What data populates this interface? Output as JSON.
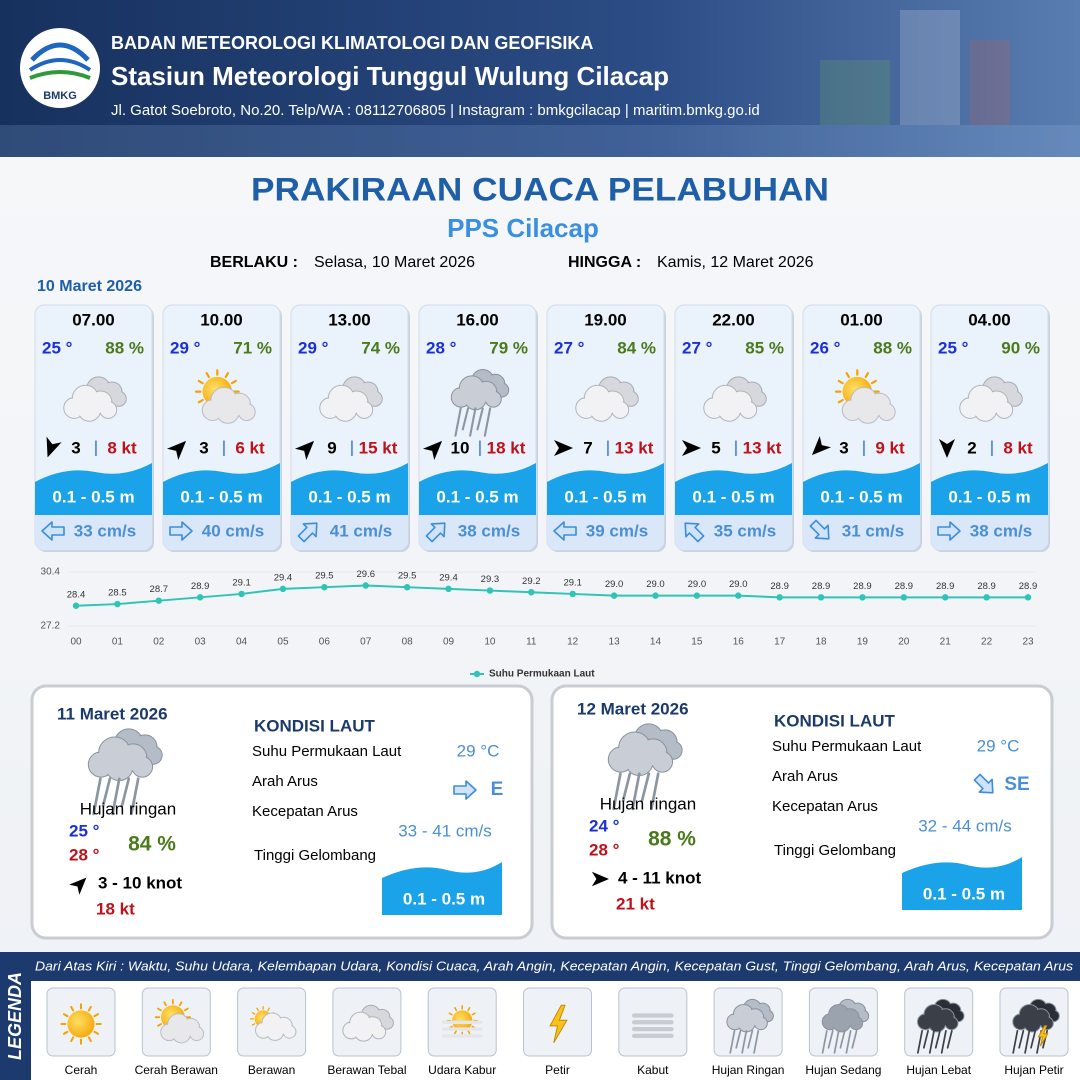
{
  "header": {
    "logo": "BMKG",
    "agency": "BADAN METEOROLOGI KLIMATOLOGI DAN GEOFISIKA",
    "station": "Stasiun Meteorologi Tunggul Wulung Cilacap",
    "contact": "Jl. Gatot Soebroto, No.20. Telp/WA : 08112706805 | Instagram : bmkgcilacap | maritim.bmkg.go.id"
  },
  "title": "PRAKIRAAN CUACA PELABUHAN",
  "subtitle": "PPS Cilacap",
  "validity": {
    "from_label": "BERLAKU :",
    "from": "Selasa, 10 Maret 2026",
    "to_label": "HINGGA :",
    "to": "Kamis, 12 Maret 2026"
  },
  "day1": {
    "date": "10 Maret 2026",
    "cards": [
      {
        "time": "07.00",
        "temp": "25 °",
        "humidity": "88 %",
        "condition": "Berawan Tebal",
        "wind_dir": 200,
        "wind": "3",
        "separator": "|",
        "gust": "8 kt",
        "wave": "0.1 - 0.5 m",
        "current_dir": 270,
        "current": "33 cm/s"
      },
      {
        "time": "10.00",
        "temp": "29 °",
        "humidity": "71 %",
        "condition": "Cerah Berawan",
        "wind_dir": 45,
        "wind": "3",
        "separator": "|",
        "gust": "6 kt",
        "wave": "0.1 - 0.5 m",
        "current_dir": 90,
        "current": "40 cm/s"
      },
      {
        "time": "13.00",
        "temp": "29 °",
        "humidity": "74 %",
        "condition": "Berawan Tebal",
        "wind_dir": 45,
        "wind": "9",
        "separator": "|",
        "gust": "15 kt",
        "wave": "0.1 - 0.5 m",
        "current_dir": 45,
        "current": "41 cm/s"
      },
      {
        "time": "16.00",
        "temp": "28 °",
        "humidity": "79 %",
        "condition": "Hujan Ringan",
        "wind_dir": 45,
        "wind": "10",
        "separator": "|",
        "gust": "18 kt",
        "wave": "0.1 - 0.5 m",
        "current_dir": 45,
        "current": "38 cm/s"
      },
      {
        "time": "19.00",
        "temp": "27 °",
        "humidity": "84 %",
        "condition": "Berawan Tebal",
        "wind_dir": 90,
        "wind": "7",
        "separator": "|",
        "gust": "13 kt",
        "wave": "0.1 - 0.5 m",
        "current_dir": 270,
        "current": "39 cm/s"
      },
      {
        "time": "22.00",
        "temp": "27 °",
        "humidity": "85 %",
        "condition": "Berawan Tebal",
        "wind_dir": 90,
        "wind": "5",
        "separator": "|",
        "gust": "13 kt",
        "wave": "0.1 - 0.5 m",
        "current_dir": 315,
        "current": "35 cm/s"
      },
      {
        "time": "01.00",
        "temp": "26 °",
        "humidity": "88 %",
        "condition": "Cerah Berawan",
        "wind_dir": 225,
        "wind": "3",
        "separator": "|",
        "gust": "9 kt",
        "wave": "0.1 - 0.5 m",
        "current_dir": 135,
        "current": "31 cm/s"
      },
      {
        "time": "04.00",
        "temp": "25 °",
        "humidity": "90 %",
        "condition": "Berawan Tebal",
        "wind_dir": 180,
        "wind": "2",
        "separator": "|",
        "gust": "8 kt",
        "wave": "0.1 - 0.5 m",
        "current_dir": 90,
        "current": "38 cm/s"
      }
    ]
  },
  "chart_data": {
    "type": "line",
    "x": [
      "00",
      "01",
      "02",
      "03",
      "04",
      "05",
      "06",
      "07",
      "08",
      "09",
      "10",
      "11",
      "12",
      "13",
      "14",
      "15",
      "16",
      "17",
      "18",
      "19",
      "20",
      "21",
      "22",
      "23"
    ],
    "series": [
      {
        "name": "Suhu Permukaan Laut",
        "color": "#2ec4b6",
        "values": [
          28.4,
          28.5,
          28.7,
          28.9,
          29.1,
          29.4,
          29.5,
          29.6,
          29.5,
          29.4,
          29.3,
          29.2,
          29.1,
          29.0,
          29.0,
          29.0,
          29.0,
          28.9,
          28.9,
          28.9,
          28.9,
          28.9,
          28.9,
          28.9
        ],
        "value_labels": [
          "28.4",
          "28.5",
          "28.7",
          "28.9",
          "29.1",
          "29.4",
          "29.5",
          "29.6",
          "29.5",
          "29.4",
          "29.3",
          "29.2",
          "29.1",
          "29.0",
          "29.0",
          "29.0",
          "29.0",
          "28.9",
          "28.9",
          "28.9",
          "28.9",
          "28.9",
          "28.9",
          "28.9"
        ]
      }
    ],
    "ylim": [
      27.2,
      30.4
    ],
    "yticks": [
      27.2,
      30.4
    ],
    "grid": true
  },
  "forecast_days": [
    {
      "date": "11 Maret 2026",
      "condition": "Hujan ringan",
      "temp_min": "25 °",
      "temp_max": "28 °",
      "humidity": "84 %",
      "wind_dir": 45,
      "wind": "3  - 10 knot",
      "gust": "18 kt",
      "sea_title": "KONDISI LAUT",
      "sst_label": "Suhu Permukaan Laut",
      "sst": "29 °C",
      "current_dir_label": "Arah Arus",
      "current_dir": "E",
      "current_dir_deg": 90,
      "current_speed_label": "Kecepatan Arus",
      "current_speed": "33 - 41 cm/s",
      "wave_label": "Tinggi Gelombang",
      "wave": "0.1 - 0.5 m"
    },
    {
      "date": "12 Maret 2026",
      "condition": "Hujan ringan",
      "temp_min": "24 °",
      "temp_max": "28 °",
      "humidity": "88 %",
      "wind_dir": 90,
      "wind": "4 - 11 knot",
      "gust": "21 kt",
      "sea_title": "KONDISI LAUT",
      "sst_label": "Suhu Permukaan Laut",
      "sst": "29 °C",
      "current_dir_label": "Arah Arus",
      "current_dir": "SE",
      "current_dir_deg": 135,
      "current_speed_label": "Kecepatan Arus",
      "current_speed": "32 - 44 cm/s",
      "wave_label": "Tinggi Gelombang",
      "wave": "0.1 - 0.5 m"
    }
  ],
  "legend": {
    "title": "LEGENDA",
    "description": "Dari Atas Kiri : Waktu, Suhu Udara, Kelembapan Udara, Kondisi Cuaca, Arah Angin, Kecepatan Angin, Kecepatan Gust, Tinggi Gelombang, Arah Arus, Kecepatan Arus",
    "items": [
      "Cerah",
      "Cerah Berawan",
      "Berawan",
      "Berawan Tebal",
      "Udara Kabur",
      "Petir",
      "Kabut",
      "Hujan Ringan",
      "Hujan Sedang",
      "Hujan Lebat",
      "Hujan Petir"
    ]
  }
}
